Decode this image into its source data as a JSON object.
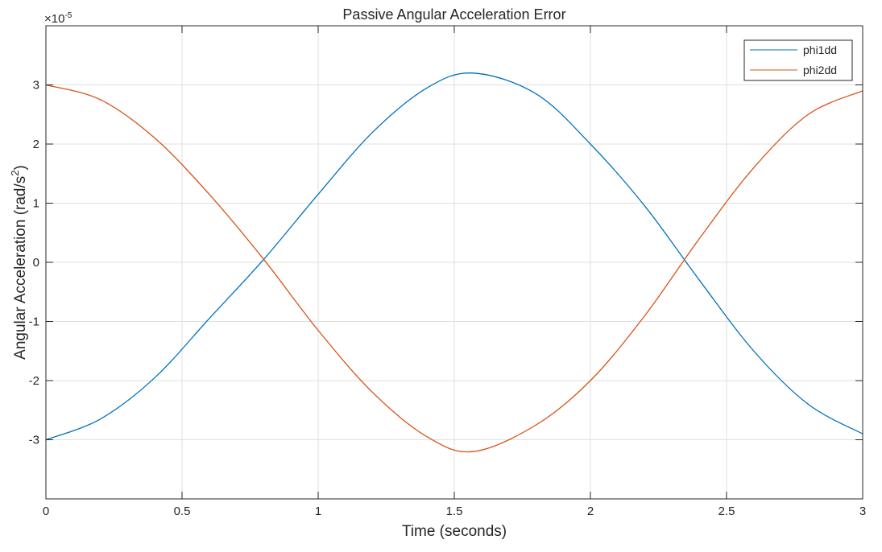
{
  "chart_data": {
    "type": "line",
    "title": "Passive Angular Acceleration Error",
    "xlabel": "Time (seconds)",
    "ylabel": {
      "base": "Angular Acceleration (rad/s",
      "sup": "2",
      "close": ")"
    },
    "exponent": {
      "prefix": "×10",
      "power": "-5"
    },
    "xlim": [
      0,
      3
    ],
    "ylim": [
      -4,
      4
    ],
    "xticks": [
      0,
      0.5,
      1,
      1.5,
      2,
      2.5,
      3
    ],
    "xtick_labels": [
      "0",
      "0.5",
      "1",
      "1.5",
      "2",
      "2.5",
      "3"
    ],
    "yticks": [
      -3,
      -2,
      -1,
      0,
      1,
      2,
      3
    ],
    "ytick_labels": [
      "-3",
      "-2",
      "-1",
      "0",
      "1",
      "2",
      "3"
    ],
    "grid": true,
    "legend_position": "top-right",
    "x": [
      0,
      0.2,
      0.4,
      0.6,
      0.8,
      1.0,
      1.2,
      1.4,
      1.57,
      1.8,
      2.0,
      2.2,
      2.4,
      2.6,
      2.8,
      3.0
    ],
    "series": [
      {
        "name": "phi1dd",
        "color": "#0072BD",
        "values": [
          -3.0,
          -2.65,
          -1.95,
          -0.95,
          0.05,
          1.15,
          2.2,
          2.95,
          3.2,
          2.85,
          2.0,
          0.95,
          -0.3,
          -1.5,
          -2.4,
          -2.9
        ]
      },
      {
        "name": "phi2dd",
        "color": "#D95319",
        "values": [
          3.0,
          2.75,
          2.1,
          1.15,
          0.05,
          -1.15,
          -2.2,
          -2.95,
          -3.2,
          -2.75,
          -2.0,
          -0.9,
          0.4,
          1.6,
          2.5,
          2.9
        ]
      }
    ]
  }
}
